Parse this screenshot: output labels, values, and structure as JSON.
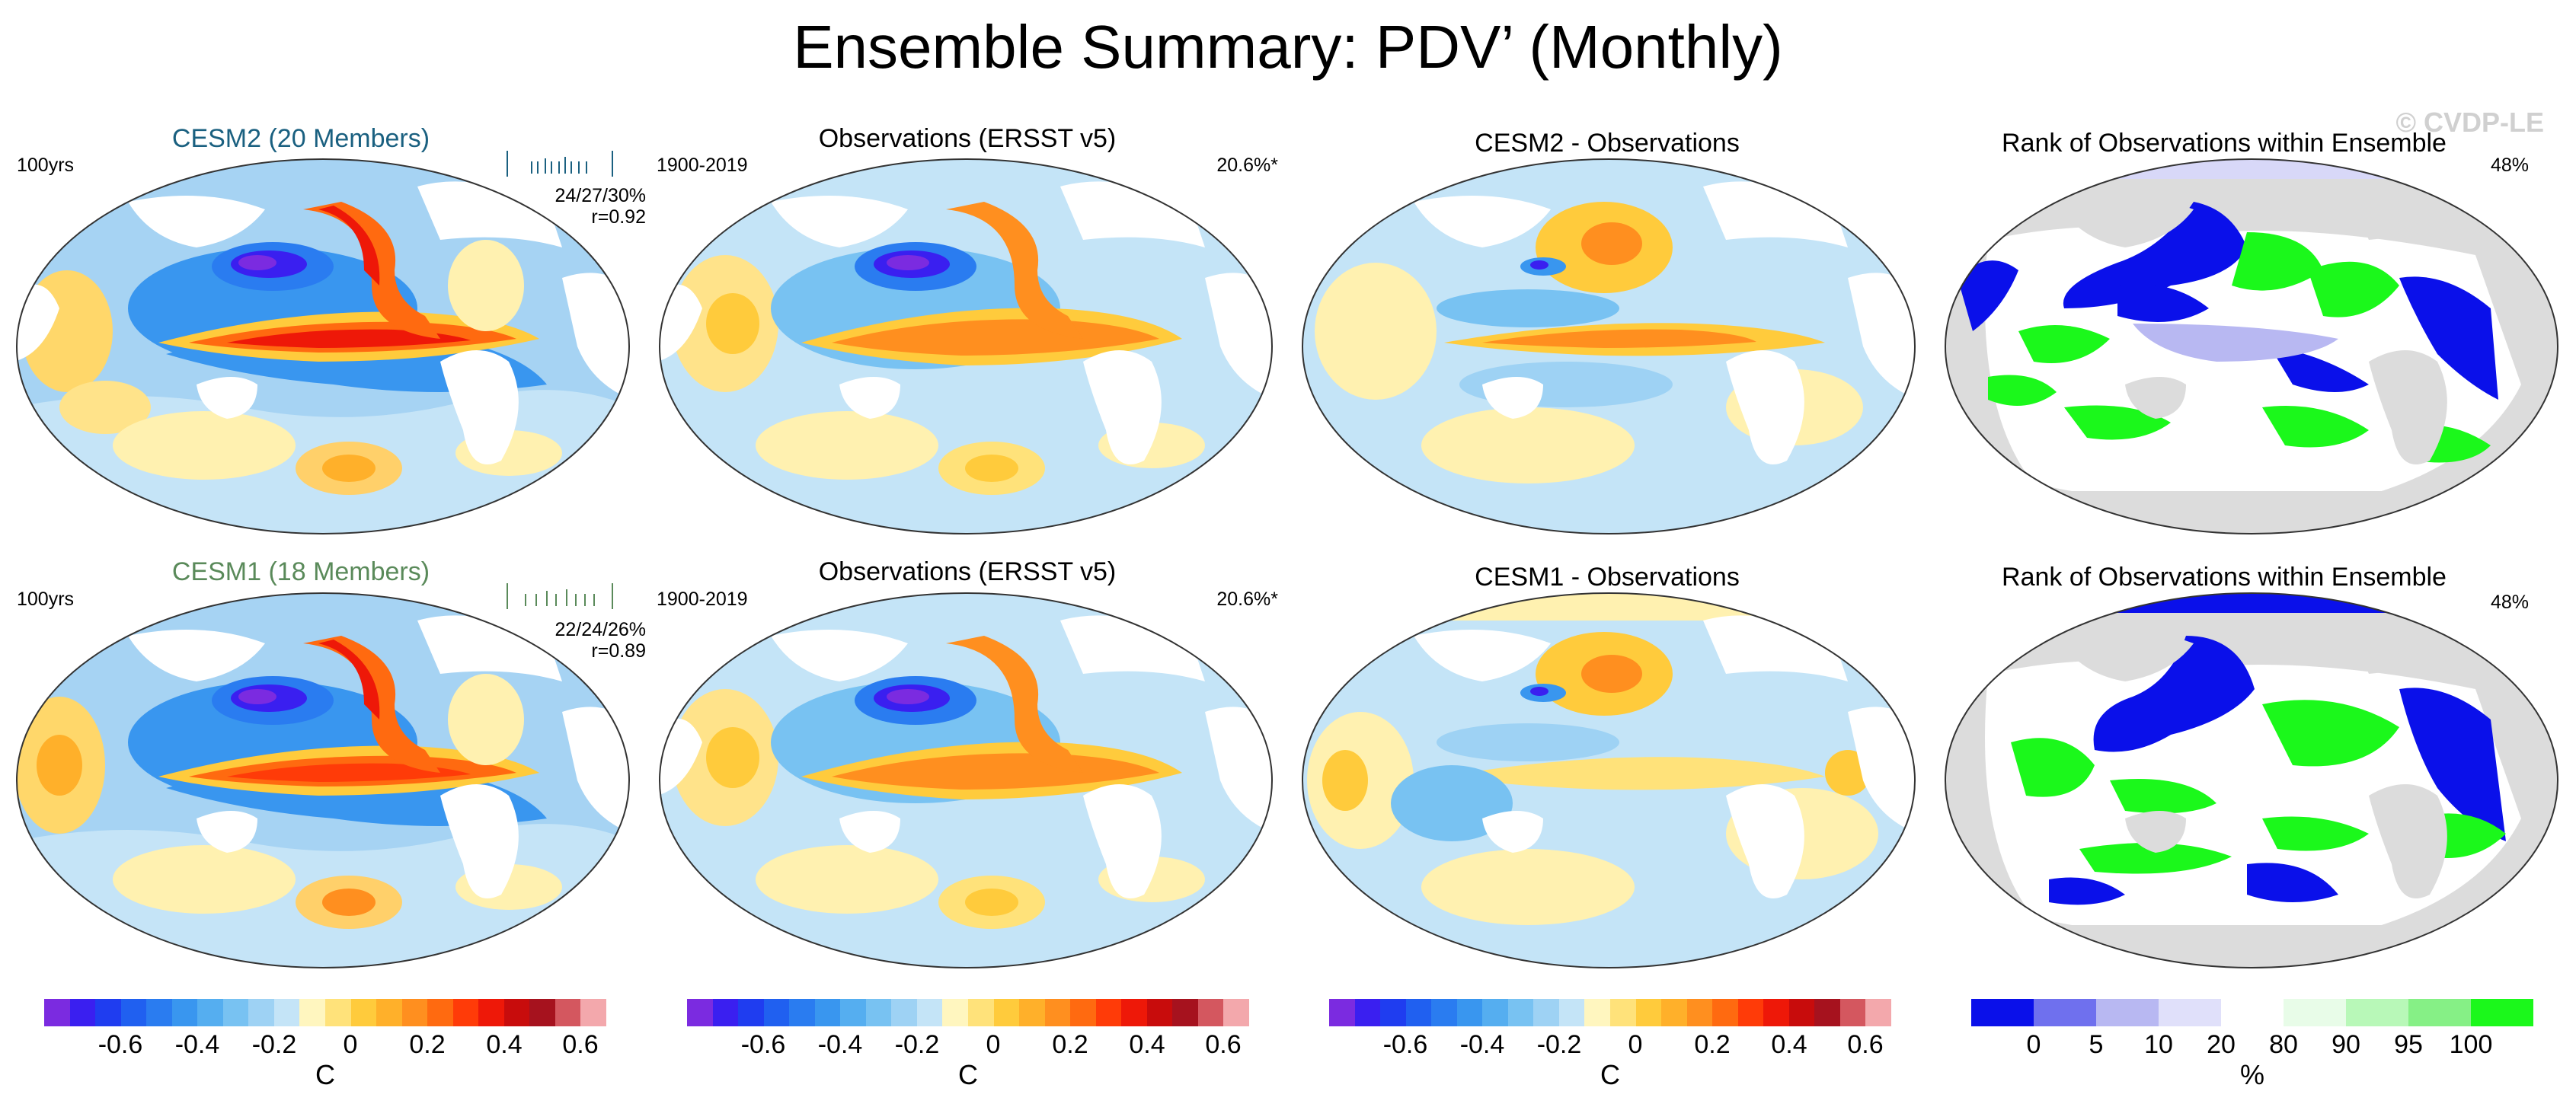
{
  "title": "Ensemble Summary: PDV’ (Monthly)",
  "watermark": "© CVDP-LE",
  "rows": [
    {
      "model_title": "CESM2 (20 Members)",
      "model_period": "100yrs",
      "model_stats": "24/27/30%",
      "model_r": "r=0.92",
      "obs_title": "Observations (ERSST v5)",
      "obs_period": "1900-2019",
      "obs_stat": "20.6%*",
      "diff_title": "CESM2 - Observations",
      "rank_title": "Rank of Observations within Ensemble",
      "rank_pct": "48%"
    },
    {
      "model_title": "CESM1 (18 Members)",
      "model_period": "100yrs",
      "model_stats": "22/24/26%",
      "model_r": "r=0.89",
      "obs_title": "Observations (ERSST v5)",
      "obs_period": "1900-2019",
      "obs_stat": "20.6%*",
      "diff_title": "CESM1 - Observations",
      "rank_title": "Rank of Observations within Ensemble",
      "rank_pct": "48%"
    }
  ],
  "colorbar_temp": {
    "colors": [
      "#7b2be0",
      "#3a1ff0",
      "#1f3df0",
      "#2060f0",
      "#2a7cf0",
      "#3996ef",
      "#55aef0",
      "#78c2f2",
      "#9ed2f4",
      "#c4e4f7",
      "#fff6bf",
      "#ffe27a",
      "#ffcb3c",
      "#ffb02a",
      "#ff8f1f",
      "#ff6a10",
      "#ff3b08",
      "#ee1808",
      "#c80c0c",
      "#a6121e",
      "#d4575f",
      "#f3a8ac"
    ],
    "ticks": [
      "-0.6",
      "-0.4",
      "-0.2",
      "0",
      "0.2",
      "0.4",
      "0.6"
    ],
    "unit": "C"
  },
  "colorbar_rank": {
    "colors": [
      "#0a10ea",
      "#6f70ee",
      "#b8b8f2",
      "#e0e0fa",
      "#ffffff",
      "#e8fce8",
      "#b8f8b8",
      "#86f086",
      "#1bf81b"
    ],
    "ticks": [
      "0",
      "5",
      "10",
      "20",
      "80",
      "90",
      "95",
      "100"
    ],
    "unit": "%"
  },
  "chart_data": [
    {
      "type": "heatmap",
      "title": "CESM2 (20 Members)",
      "units": "C",
      "range": [
        -0.7,
        0.7
      ]
    },
    {
      "type": "heatmap",
      "title": "Observations (ERSST v5)",
      "units": "C",
      "range": [
        -0.7,
        0.7
      ]
    },
    {
      "type": "heatmap",
      "title": "CESM2 - Observations",
      "units": "C",
      "range": [
        -0.7,
        0.7
      ]
    },
    {
      "type": "heatmap",
      "title": "Rank of Observations within Ensemble",
      "units": "%",
      "levels": [
        0,
        5,
        10,
        20,
        80,
        90,
        95,
        100
      ]
    },
    {
      "type": "heatmap",
      "title": "CESM1 (18 Members)",
      "units": "C",
      "range": [
        -0.7,
        0.7
      ]
    },
    {
      "type": "heatmap",
      "title": "Observations (ERSST v5)",
      "units": "C",
      "range": [
        -0.7,
        0.7
      ]
    },
    {
      "type": "heatmap",
      "title": "CESM1 - Observations",
      "units": "C",
      "range": [
        -0.7,
        0.7
      ]
    },
    {
      "type": "heatmap",
      "title": "Rank of Observations within Ensemble",
      "units": "%",
      "levels": [
        0,
        5,
        10,
        20,
        80,
        90,
        95,
        100
      ]
    }
  ]
}
